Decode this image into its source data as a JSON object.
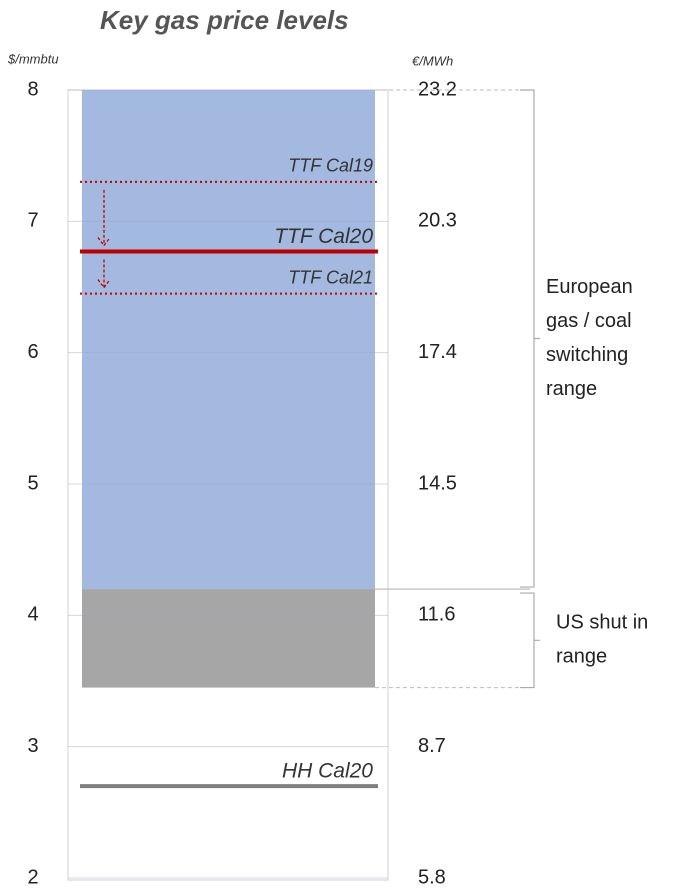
{
  "chart_data": {
    "type": "levels",
    "title": "Key gas price levels",
    "y_label": "$/mmbtu",
    "y2_label": "€/MWh",
    "ylim": [
      2,
      8
    ],
    "yticks": [
      2,
      3,
      4,
      5,
      6,
      7,
      8
    ],
    "y2lim": [
      5.8,
      23.2
    ],
    "y2ticks": [
      5.8,
      8.7,
      11.6,
      14.5,
      17.4,
      20.3,
      23.2
    ],
    "grid": true,
    "bands": [
      {
        "from": 4.2,
        "to": 8,
        "color": "#a3b9e0",
        "annotation": [
          "European",
          "gas / coal",
          "switching",
          "range"
        ]
      },
      {
        "from": 3.45,
        "to": 4.2,
        "color": "#a6a6a6",
        "annotation": [
          "US shut in",
          "range"
        ]
      }
    ],
    "lines": [
      {
        "name": "TTF Cal19",
        "value": 7.3,
        "color": "#c00000",
        "style": "dotted"
      },
      {
        "name": "TTF Cal20",
        "value": 6.77,
        "color": "#c00000",
        "style": "solid"
      },
      {
        "name": "TTF Cal21",
        "value": 6.45,
        "color": "#c00000",
        "style": "dotted"
      },
      {
        "name": "HH Cal20",
        "value": 2.7,
        "color": "#7f7f7f",
        "style": "solid"
      }
    ]
  }
}
